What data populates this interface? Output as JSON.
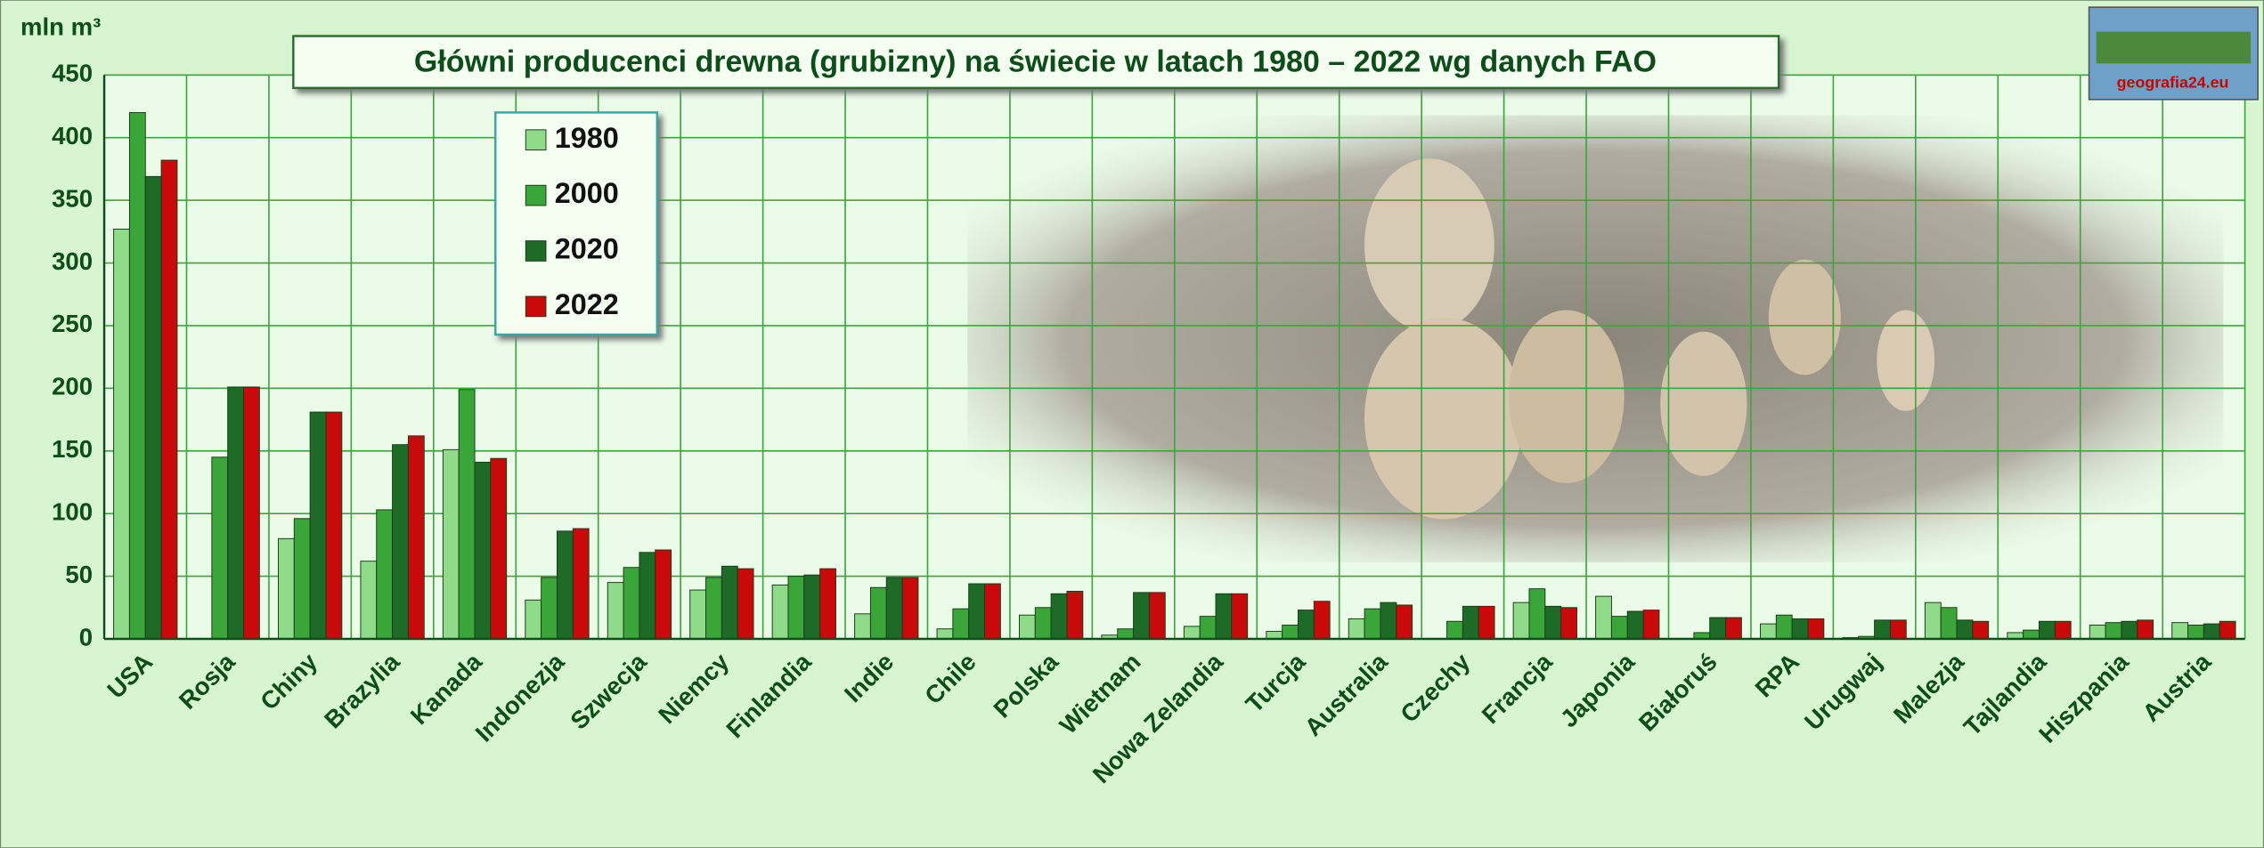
{
  "chart_data": {
    "type": "bar",
    "title": "Główni producenci drewna (grubizny) na świecie w latach 1980 – 2022 wg danych FAO",
    "ylabel": "mln m³",
    "logo": "geografia24.eu",
    "categories": [
      "USA",
      "Rosja",
      "Chiny",
      "Brazylia",
      "Kanada",
      "Indonezja",
      "Szwecja",
      "Niemcy",
      "Finlandia",
      "Indie",
      "Chile",
      "Polska",
      "Wietnam",
      "Nowa Zelandia",
      "Turcja",
      "Australia",
      "Czechy",
      "Francja",
      "Japonia",
      "Białoruś",
      "RPA",
      "Urugwaj",
      "Malezja",
      "Tajlandia",
      "Hiszpania",
      "Austria"
    ],
    "series": [
      {
        "name": "1980",
        "color": "#8fdb8a",
        "values": [
          327,
          null,
          80,
          62,
          151,
          31,
          45,
          39,
          43,
          20,
          8,
          19,
          3,
          10,
          6,
          16,
          null,
          29,
          34,
          null,
          12,
          1,
          29,
          5,
          11,
          13
        ]
      },
      {
        "name": "2000",
        "color": "#3aa63a",
        "values": [
          420,
          145,
          96,
          103,
          199,
          49,
          57,
          49,
          50,
          41,
          24,
          25,
          8,
          18,
          11,
          24,
          14,
          40,
          18,
          5,
          19,
          2,
          25,
          7,
          13,
          11
        ]
      },
      {
        "name": "2020",
        "color": "#1e6b28",
        "values": [
          369,
          201,
          181,
          155,
          141,
          86,
          69,
          58,
          51,
          49,
          44,
          36,
          37,
          36,
          23,
          29,
          26,
          26,
          22,
          17,
          16,
          15,
          15,
          14,
          14,
          12
        ]
      },
      {
        "name": "2022",
        "color": "#c90a0a",
        "values": [
          382,
          201,
          181,
          162,
          144,
          88,
          71,
          56,
          56,
          49,
          44,
          38,
          37,
          36,
          30,
          27,
          26,
          25,
          23,
          17,
          16,
          15,
          14,
          14,
          15,
          14
        ]
      }
    ],
    "ylim": [
      0,
      450
    ],
    "yticks": [
      0,
      50,
      100,
      150,
      200,
      250,
      300,
      350,
      400,
      450
    ],
    "grid": true
  }
}
